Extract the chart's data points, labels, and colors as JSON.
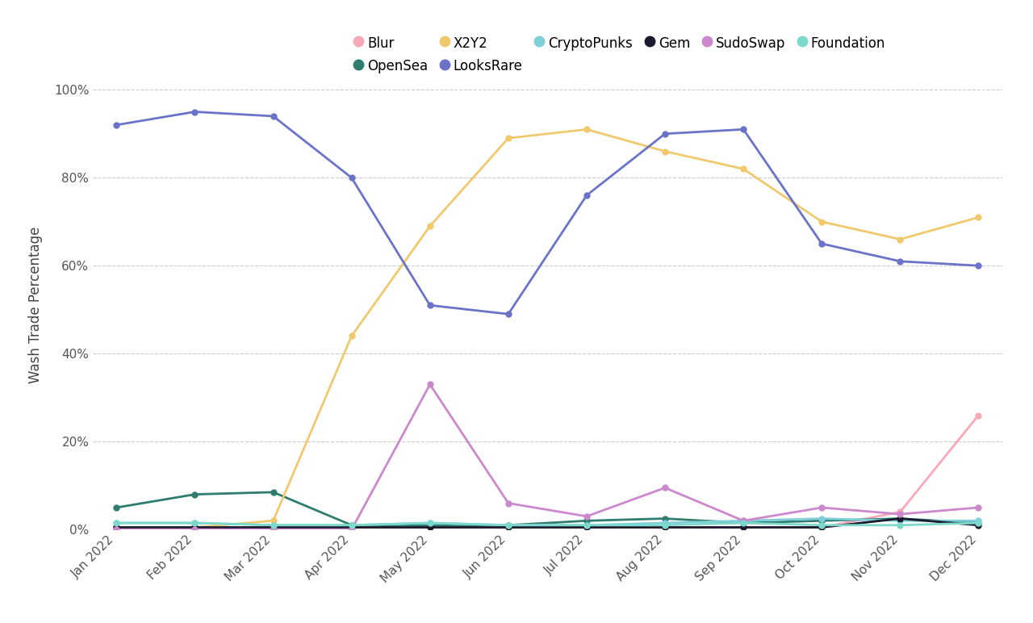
{
  "months": [
    "Jan 2022",
    "Feb 2022",
    "Mar 2022",
    "Apr 2022",
    "May 2022",
    "Jun 2022",
    "Jul 2022",
    "Aug 2022",
    "Sep 2022",
    "Oct 2022",
    "Nov 2022",
    "Dec 2022"
  ],
  "series": {
    "Blur": [
      0.5,
      0.5,
      0.5,
      0.5,
      0.5,
      0.5,
      0.5,
      0.5,
      0.5,
      0.5,
      4.0,
      26.0
    ],
    "OpenSea": [
      5.0,
      8.0,
      8.5,
      1.0,
      1.0,
      1.0,
      2.0,
      2.5,
      1.5,
      2.0,
      2.5,
      1.5
    ],
    "X2Y2": [
      0.5,
      0.5,
      2.0,
      44.0,
      69.0,
      89.0,
      91.0,
      86.0,
      82.0,
      70.0,
      66.0,
      71.0
    ],
    "LooksRare": [
      92.0,
      95.0,
      94.0,
      80.0,
      51.0,
      49.0,
      76.0,
      90.0,
      91.0,
      65.0,
      61.0,
      60.0
    ],
    "CryptoPunks": [
      1.5,
      1.5,
      1.0,
      1.0,
      1.5,
      1.0,
      1.0,
      1.5,
      2.0,
      2.5,
      2.0,
      2.0
    ],
    "Gem": [
      0.5,
      0.5,
      0.5,
      0.5,
      0.5,
      0.5,
      0.5,
      0.5,
      0.5,
      0.5,
      2.5,
      1.0
    ],
    "SudoSwap": [
      0.0,
      0.0,
      0.0,
      0.0,
      33.0,
      6.0,
      3.0,
      9.5,
      2.0,
      5.0,
      3.5,
      5.0
    ],
    "Foundation": [
      1.5,
      1.5,
      1.0,
      1.0,
      1.5,
      1.0,
      1.0,
      1.0,
      1.5,
      1.0,
      1.0,
      1.5
    ]
  },
  "colors": {
    "Blur": "#F9A8B8",
    "OpenSea": "#2E7D6E",
    "X2Y2": "#F0C96E",
    "LooksRare": "#6B73C9",
    "CryptoPunks": "#7ECFD8",
    "Gem": "#1A1A2E",
    "SudoSwap": "#CC88CC",
    "Foundation": "#7DD9CC"
  },
  "ylabel": "Wash Trade Percentage",
  "ylim": [
    0,
    100
  ],
  "yticks": [
    0,
    20,
    40,
    60,
    80,
    100
  ],
  "ytick_labels": [
    "0%",
    "20%",
    "40%",
    "60%",
    "80%",
    "100%"
  ],
  "background_color": "#FFFFFF",
  "grid_color": "#CCCCCC",
  "legend_order": [
    "Blur",
    "OpenSea",
    "X2Y2",
    "LooksRare",
    "CryptoPunks",
    "Gem",
    "SudoSwap",
    "Foundation"
  ]
}
